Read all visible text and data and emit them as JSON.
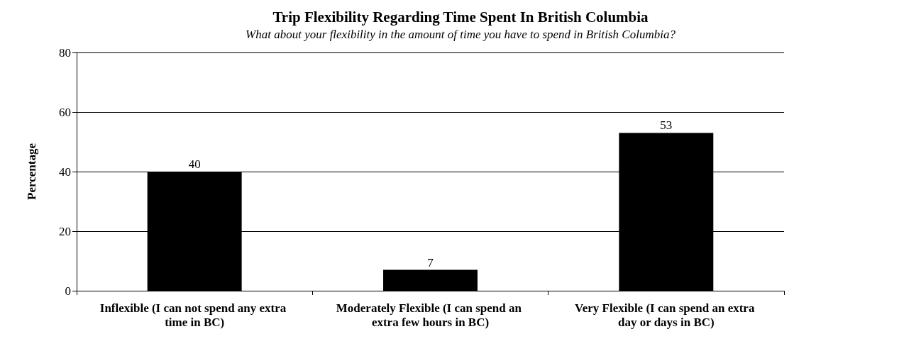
{
  "chart_data": {
    "type": "bar",
    "title": "Trip Flexibility Regarding Time Spent In British Columbia",
    "subtitle": "What about your flexibility in the amount of time you have to spend in British Columbia?",
    "ylabel": "Percentage",
    "categories": [
      "Inflexible (I can not spend any extra time in BC)",
      "Moderately Flexible (I can spend an extra few hours in BC)",
      "Very Flexible (I can spend an extra day or days in BC)"
    ],
    "values": [
      40,
      7,
      53
    ],
    "color": "#000000",
    "ylim": [
      0,
      80
    ],
    "yticks": [
      0,
      20,
      40,
      60,
      80
    ],
    "grid": "y",
    "data_labels": true
  }
}
